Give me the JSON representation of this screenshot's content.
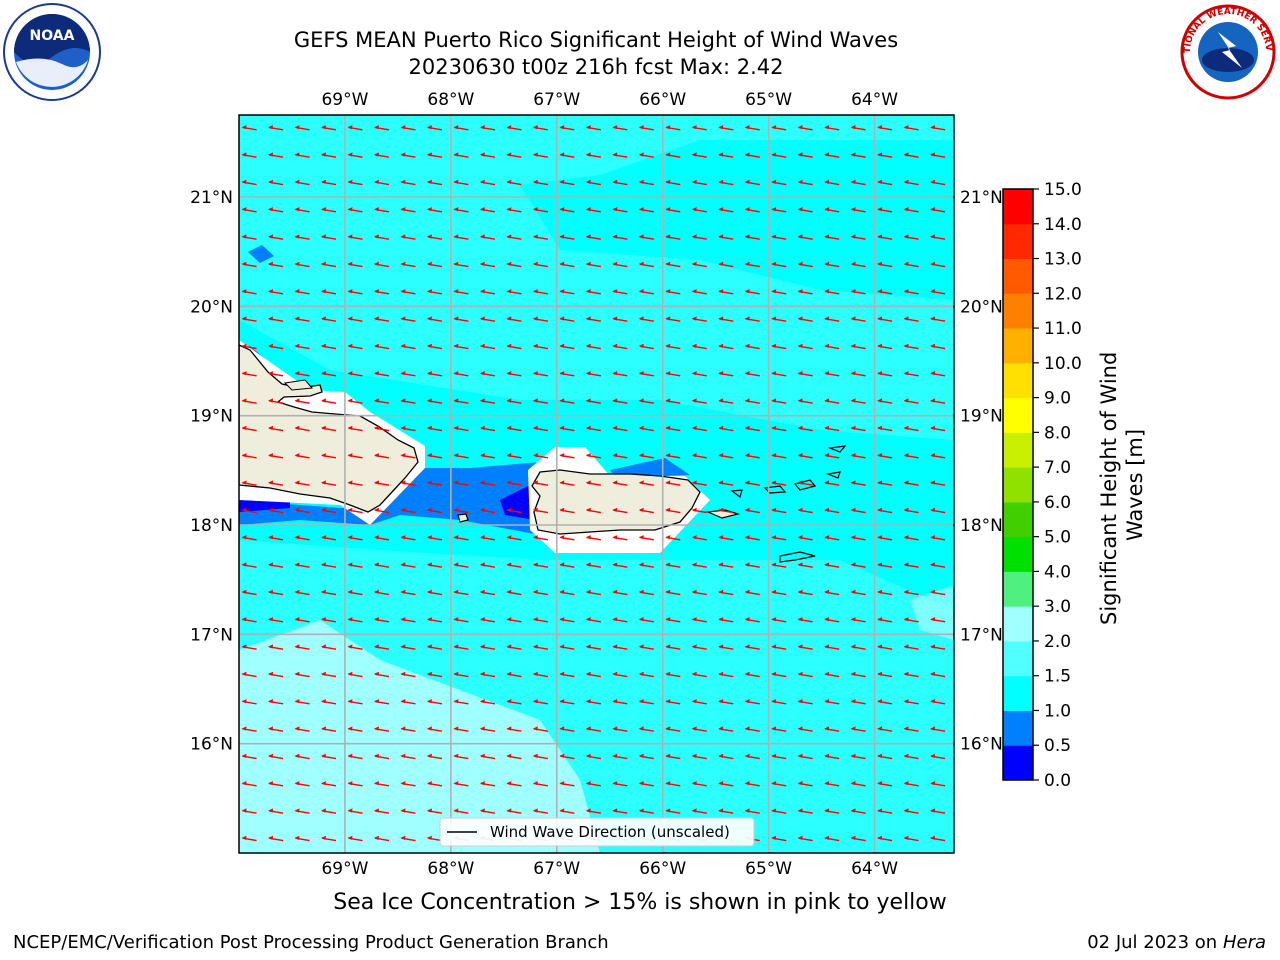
{
  "title": {
    "line1": "GEFS MEAN Puerto Rico Significant Height of Wind Waves",
    "line2": "20230630 t00z 216h fcst   Max: 2.42"
  },
  "logos": {
    "left": "NOAA",
    "right": "NATIONAL WEATHER SERVICE"
  },
  "map": {
    "lon_labels": [
      "69°W",
      "68°W",
      "67°W",
      "66°W",
      "65°W",
      "64°W"
    ],
    "lat_labels": [
      "21°N",
      "20°N",
      "19°N",
      "18°N",
      "17°N",
      "16°N"
    ],
    "extent": {
      "lon_min": -70.0,
      "lon_max": -63.25,
      "lat_min": 15.0,
      "lat_max": 21.75
    },
    "ocean_color": "#00ffff",
    "land_color": "#efeddc",
    "arrow_color": "#ff0000",
    "legend_label": "Wind Wave Direction (unscaled)"
  },
  "colorbar": {
    "label": "Significant Height of Wind Waves [m]",
    "ticks": [
      "0.0",
      "0.5",
      "1.0",
      "1.5",
      "2.0",
      "3.0",
      "4.0",
      "5.0",
      "6.0",
      "7.0",
      "8.0",
      "9.0",
      "10.0",
      "11.0",
      "12.0",
      "13.0",
      "14.0",
      "15.0"
    ],
    "colors": [
      "#0000ff",
      "#0080ff",
      "#00ffff",
      "#50ffff",
      "#a0ffff",
      "#50f080",
      "#00e000",
      "#40d000",
      "#90e000",
      "#c8f000",
      "#ffff00",
      "#ffe000",
      "#ffb000",
      "#ff8000",
      "#ff5a00",
      "#ff2800",
      "#ff0000"
    ]
  },
  "caption": "Sea Ice Concentration > 15% is shown in pink to yellow",
  "footer": {
    "left": "NCEP/EMC/Verification Post Processing Product Generation Branch",
    "date": "02 Jul 2023 on ",
    "host": "Hera"
  }
}
